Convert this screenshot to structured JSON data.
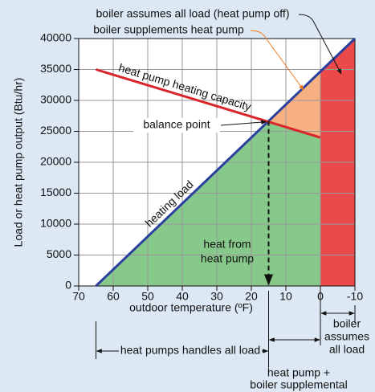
{
  "chart_data": {
    "type": "line",
    "xlabel": "outdoor temperature (ºF)",
    "ylabel": "Load or heat pump output (Btu/hr)",
    "xlim": [
      70,
      -10
    ],
    "xticks": [
      70,
      60,
      50,
      40,
      30,
      20,
      10,
      0,
      -10
    ],
    "ylim": [
      0,
      40000
    ],
    "yticks": [
      0,
      5000,
      10000,
      15000,
      20000,
      25000,
      30000,
      35000,
      40000
    ],
    "grid": true,
    "series": [
      {
        "name": "heating load",
        "color": "#2b3f9e",
        "x": [
          65,
          -10
        ],
        "values": [
          0,
          40000
        ]
      },
      {
        "name": "heat pump heating capacity",
        "color": "#d8262b",
        "x": [
          65,
          0
        ],
        "values": [
          35000,
          24000
        ]
      }
    ],
    "balance_point": {
      "label": "balance point",
      "x": 15,
      "y": 26667
    },
    "regions": {
      "heat_pump": {
        "label": [
          "heat from",
          "heat pump"
        ],
        "color": "#86c98a"
      },
      "supplement": {
        "label": "boiler supplements heat pump",
        "color": "#f7b081",
        "text_color": "#f07a20"
      },
      "boiler": {
        "label": "boiler assumes all load (heat pump off)",
        "color": "#ec4a4a"
      }
    },
    "ranges": {
      "boiler": [
        "boiler",
        "assumes",
        "all load"
      ],
      "heat_pump": "heat pumps handles all load",
      "supplemental": [
        "heat pump +",
        "boiler supplemental"
      ]
    }
  }
}
